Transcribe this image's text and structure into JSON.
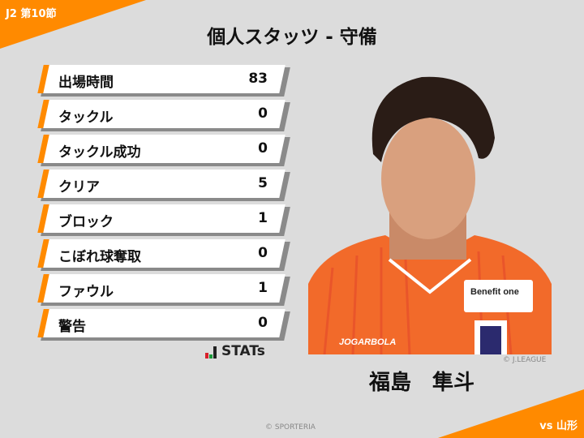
{
  "header": {
    "round": "J2 第10節",
    "title": "個人スタッツ - 守備"
  },
  "stats": [
    {
      "label": "出場時間",
      "value": "83"
    },
    {
      "label": "タックル",
      "value": "0"
    },
    {
      "label": "タックル成功",
      "value": "0"
    },
    {
      "label": "クリア",
      "value": "5"
    },
    {
      "label": "ブロック",
      "value": "1"
    },
    {
      "label": "こぼれ球奪取",
      "value": "0"
    },
    {
      "label": "ファウル",
      "value": "1"
    },
    {
      "label": "警告",
      "value": "0"
    }
  ],
  "logo": {
    "text": "STATs"
  },
  "player": {
    "name": "福島　隼斗",
    "photo_credit": "© J.LEAGUE",
    "shirt_sponsor": "Benefit one",
    "shirt_brand": "JOGARBOLA"
  },
  "footer": {
    "credit": "© SPORTERIA",
    "opponent": "vs 山形"
  },
  "colors": {
    "accent": "#ff8a00",
    "background": "#dcdcdc"
  }
}
